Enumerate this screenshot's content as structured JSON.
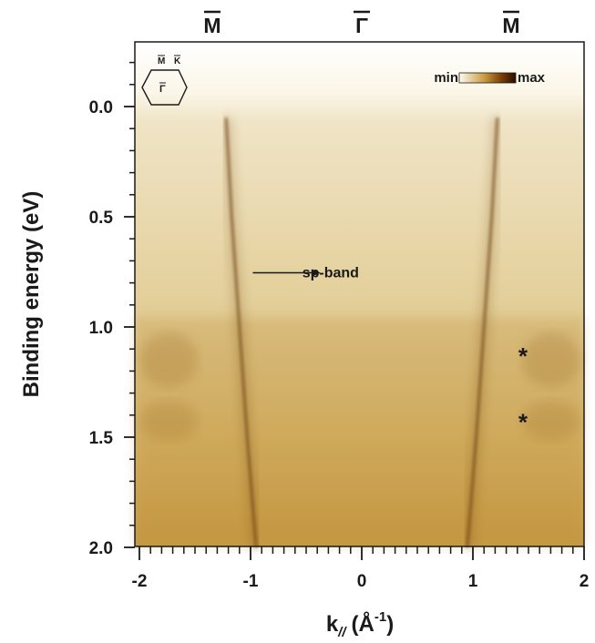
{
  "chart_data": {
    "type": "heatmap",
    "title": "",
    "xlabel": "k",
    "xlabel_sub": "//",
    "xlabel_unit": "(Å",
    "xlabel_unit_sup": "-1",
    "xlabel_unit_close": ")",
    "ylabel": "Binding energy (eV)",
    "xlim": [
      -2,
      2
    ],
    "ylim": [
      2.0,
      -0.3
    ],
    "x_ticks": [
      -2,
      -1,
      0,
      1,
      2
    ],
    "x_tick_labels": [
      "-2",
      "-1",
      "0",
      "1",
      "2"
    ],
    "x_minor_step": 0.1,
    "y_ticks": [
      0.0,
      0.5,
      1.0,
      1.5,
      2.0
    ],
    "y_tick_labels": [
      "0.0",
      "0.5",
      "1.0",
      "1.5",
      "2.0"
    ],
    "y_minor_step": 0.1,
    "top_labels": [
      {
        "x": -1.35,
        "text": "M"
      },
      {
        "x": 0.0,
        "text": "Γ"
      },
      {
        "x": 1.35,
        "text": "M"
      }
    ],
    "colorbar": {
      "min_label": "min",
      "max_label": "max",
      "colors": [
        "#fffbf0",
        "#c89a40",
        "#7a3d05",
        "#2a0a00"
      ]
    },
    "inset": {
      "labels": [
        "M",
        "K",
        "Γ"
      ]
    },
    "annotations": [
      {
        "text": "sp-band",
        "x": -0.28,
        "y": 0.75
      },
      {
        "text": "*",
        "x": 1.45,
        "y": 1.12
      },
      {
        "text": "*",
        "x": 1.45,
        "y": 1.42
      }
    ],
    "arrow": {
      "from": [
        -0.98,
        0.75
      ],
      "to": [
        -0.38,
        0.75
      ]
    },
    "bands": [
      {
        "name": "left",
        "points": [
          [
            -1.22,
            0.05
          ],
          [
            -1.17,
            0.5
          ],
          [
            -1.1,
            1.0
          ],
          [
            -1.03,
            1.5
          ],
          [
            -0.95,
            2.0
          ]
        ]
      },
      {
        "name": "right",
        "points": [
          [
            1.22,
            0.05
          ],
          [
            1.17,
            0.5
          ],
          [
            1.1,
            1.0
          ],
          [
            1.03,
            1.5
          ],
          [
            0.95,
            2.0
          ]
        ]
      }
    ],
    "colors": {
      "bg_top": "#efe2c0",
      "bg_bottom": "#c9a24c",
      "band": "#6b3d0a",
      "frame": "#1a1a1a"
    }
  }
}
